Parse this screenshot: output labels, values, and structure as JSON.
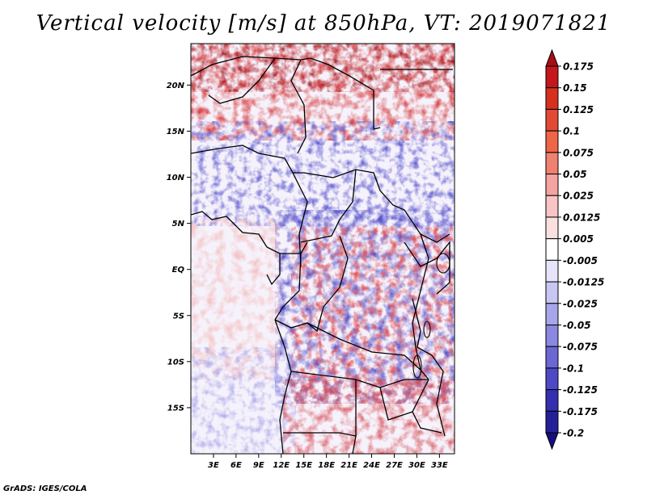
{
  "title": "Vertical velocity [m/s] at 850hPa, VT: 2019071821",
  "credit": "GrADS: IGES/COLA",
  "map": {
    "lat_labels": [
      "20N",
      "15N",
      "10N",
      "5N",
      "EQ",
      "5S",
      "10S",
      "15S"
    ],
    "lon_labels": [
      "3E",
      "6E",
      "9E",
      "12E",
      "15E",
      "18E",
      "21E",
      "24E",
      "27E",
      "30E",
      "33E"
    ],
    "lat_range": [
      -20,
      24.5
    ],
    "lon_range": [
      0,
      35
    ]
  },
  "colorbar": {
    "labels": [
      "0.175",
      "0.15",
      "0.125",
      "0.1",
      "0.075",
      "0.05",
      "0.025",
      "0.0125",
      "0.005",
      "-0.005",
      "-0.0125",
      "-0.025",
      "-0.05",
      "-0.075",
      "-0.1",
      "-0.125",
      "-0.175",
      "-0.2"
    ],
    "colors": [
      "#a50f15",
      "#c4161c",
      "#d7301f",
      "#e34a33",
      "#ef6548",
      "#f08070",
      "#f4a3a0",
      "#f8c4c4",
      "#fbe0e0",
      "#ffffff",
      "#e6e4fa",
      "#c8c6f2",
      "#a8a6ea",
      "#8a88e0",
      "#6b68d4",
      "#4e4ac6",
      "#3530b0",
      "#24209a",
      "#150f7e"
    ]
  }
}
